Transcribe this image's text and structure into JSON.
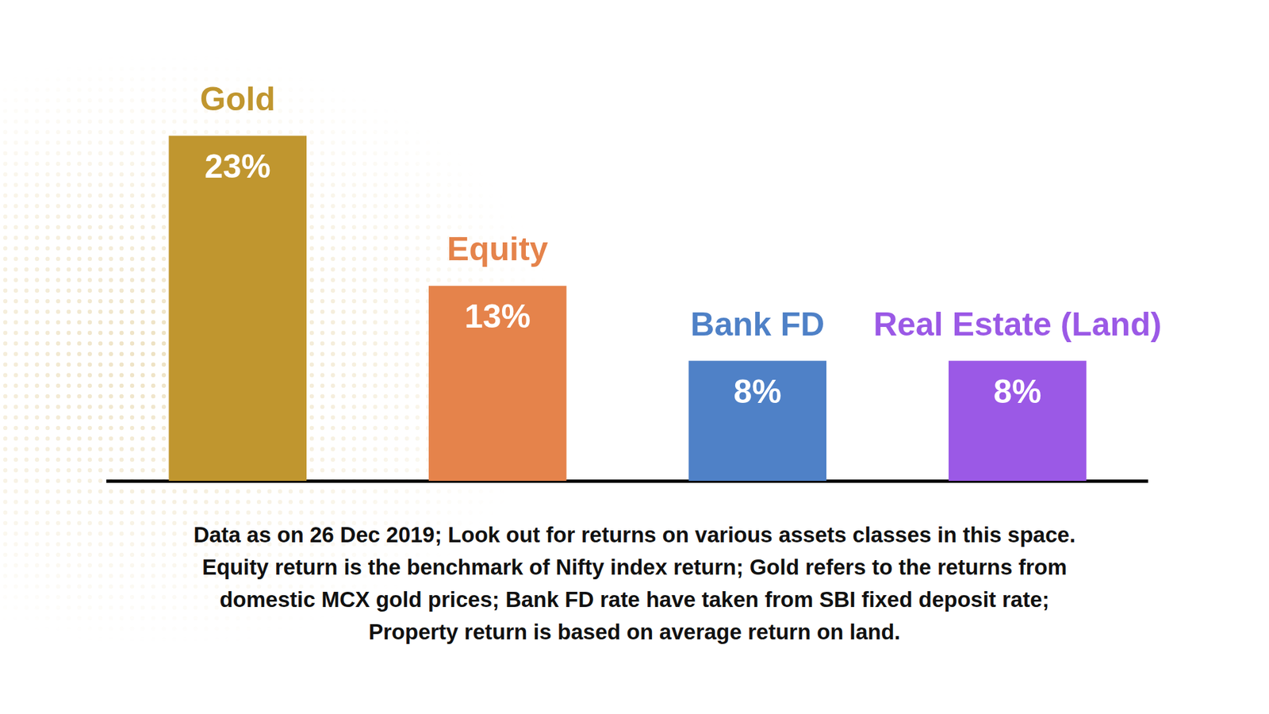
{
  "chart_data": {
    "type": "bar",
    "categories": [
      "Gold",
      "Equity",
      "Bank FD",
      "Real Estate (Land)"
    ],
    "values": [
      23,
      13,
      8,
      8
    ],
    "value_labels": [
      "23%",
      "13%",
      "8%",
      "8%"
    ],
    "colors": [
      "#c0962f",
      "#e5834b",
      "#4f81c7",
      "#9b59e6"
    ],
    "ylim": [
      0,
      25
    ],
    "yticks": [
      0,
      5,
      10,
      15,
      20,
      25
    ],
    "grid": false,
    "data_labels": true,
    "tick_labels": false,
    "annotations": [
      "Data as on 26 Dec 2019; Look out for returns on various assets classes in this space.",
      "Equity return is the benchmark of Nifty index return; Gold refers to the returns from",
      "domestic MCX gold prices; Bank FD rate have taken from SBI fixed deposit rate;",
      "Property return is based on average return on land."
    ]
  }
}
